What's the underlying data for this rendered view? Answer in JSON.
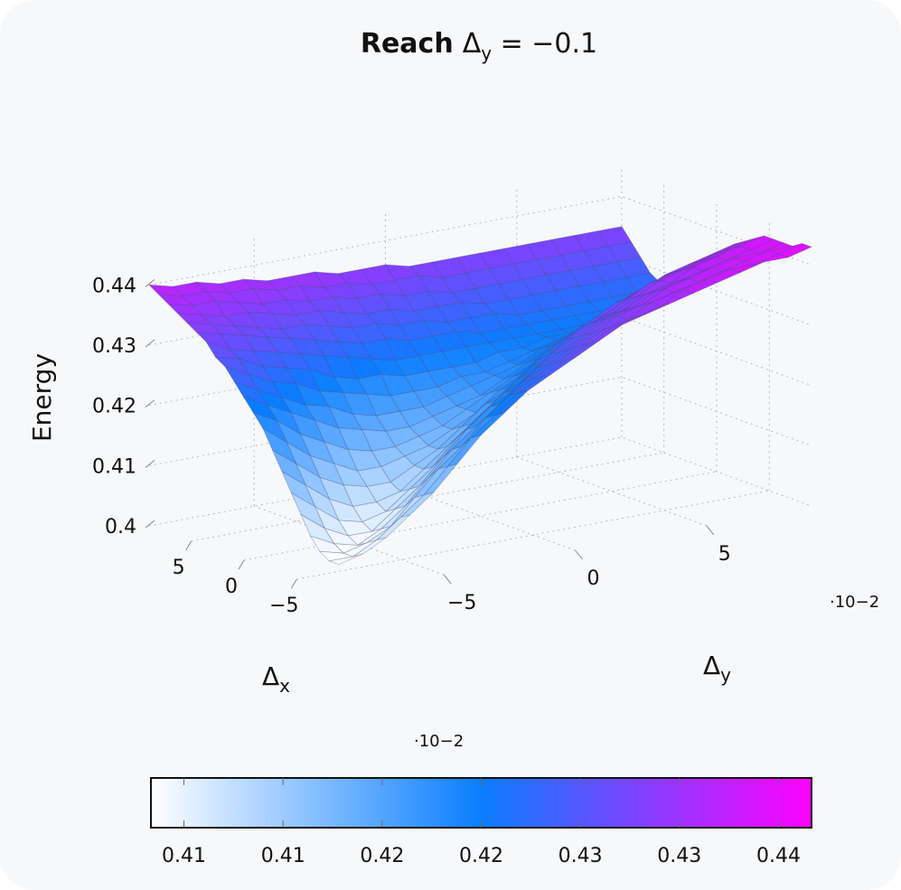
{
  "chart_data": {
    "type": "surface3d",
    "title": {
      "bold": "Reach",
      "rest": "Δy = −0.1",
      "symbol": "Δ",
      "var": "y",
      "eq": " = −0.1"
    },
    "xlabel": {
      "symbol": "Δ",
      "sub": "x"
    },
    "ylabel": {
      "symbol": "Δ",
      "sub": "y"
    },
    "zlabel": "Energy",
    "x_ticks": [
      "−5",
      "0",
      "5"
    ],
    "y_ticks": [
      "−5",
      "0",
      "5"
    ],
    "z_ticks": [
      "0.4",
      "0.41",
      "0.42",
      "0.43",
      "0.44"
    ],
    "x_tick_values": [
      -5,
      0,
      5
    ],
    "y_tick_values": [
      -5,
      0,
      5
    ],
    "z_tick_values": [
      0.4,
      0.41,
      0.42,
      0.43,
      0.44
    ],
    "x_multiplier": "·10−2",
    "y_multiplier": "·10−2",
    "xlim": [
      -9,
      9
    ],
    "ylim": [
      -9,
      9
    ],
    "zlim": [
      0.4,
      0.445
    ],
    "grid": true,
    "colormap": [
      "#ffffff",
      "#0a7dff",
      "#ff00ff"
    ],
    "colorbar": {
      "range": [
        0.405,
        0.445
      ],
      "tick_labels": [
        "0.41",
        "0.41",
        "0.42",
        "0.42",
        "0.43",
        "0.43",
        "0.44"
      ],
      "tick_values": [
        0.407,
        0.413,
        0.419,
        0.425,
        0.431,
        0.437,
        0.443
      ],
      "multiplier": "·10−2"
    },
    "grid_x": [
      -9,
      -8.1,
      -7.2,
      -6.3,
      -5.4,
      -4.5,
      -3.6,
      -2.7,
      -1.8,
      -0.9,
      0,
      0.9,
      1.8,
      2.7,
      3.6,
      4.5,
      5.4,
      6.3,
      7.2,
      8.1,
      9
    ],
    "grid_y": [
      -9,
      -8.1,
      -7.2,
      -6.3,
      -5.4,
      -4.5,
      -3.6,
      -2.7,
      -1.8,
      -0.9,
      0,
      0.9,
      1.8,
      2.7,
      3.6,
      4.5,
      5.4,
      6.3,
      7.2,
      8.1,
      9
    ],
    "z": [
      [
        0.405,
        0.406,
        0.408,
        0.411,
        0.414,
        0.418,
        0.422,
        0.425,
        0.428,
        0.43,
        0.432,
        0.434,
        0.436,
        0.437,
        0.438,
        0.439,
        0.44,
        0.441,
        0.442,
        0.442,
        0.443
      ],
      [
        0.405,
        0.405,
        0.407,
        0.41,
        0.413,
        0.417,
        0.421,
        0.424,
        0.427,
        0.429,
        0.431,
        0.433,
        0.435,
        0.436,
        0.437,
        0.439,
        0.44,
        0.441,
        0.441,
        0.442,
        0.443
      ],
      [
        0.406,
        0.405,
        0.406,
        0.408,
        0.412,
        0.416,
        0.419,
        0.423,
        0.426,
        0.428,
        0.43,
        0.432,
        0.434,
        0.435,
        0.437,
        0.438,
        0.439,
        0.44,
        0.441,
        0.442,
        0.442
      ],
      [
        0.408,
        0.406,
        0.405,
        0.407,
        0.41,
        0.414,
        0.418,
        0.421,
        0.424,
        0.427,
        0.429,
        0.431,
        0.433,
        0.435,
        0.436,
        0.438,
        0.439,
        0.44,
        0.441,
        0.441,
        0.442
      ],
      [
        0.411,
        0.408,
        0.406,
        0.406,
        0.409,
        0.412,
        0.416,
        0.42,
        0.423,
        0.425,
        0.428,
        0.43,
        0.432,
        0.434,
        0.435,
        0.437,
        0.438,
        0.439,
        0.44,
        0.441,
        0.442
      ],
      [
        0.414,
        0.411,
        0.408,
        0.407,
        0.408,
        0.411,
        0.414,
        0.418,
        0.421,
        0.424,
        0.426,
        0.429,
        0.431,
        0.433,
        0.434,
        0.436,
        0.437,
        0.439,
        0.44,
        0.441,
        0.442
      ],
      [
        0.417,
        0.414,
        0.411,
        0.409,
        0.409,
        0.41,
        0.413,
        0.416,
        0.419,
        0.422,
        0.425,
        0.427,
        0.43,
        0.432,
        0.433,
        0.435,
        0.437,
        0.438,
        0.439,
        0.44,
        0.441
      ],
      [
        0.42,
        0.417,
        0.414,
        0.412,
        0.411,
        0.411,
        0.413,
        0.415,
        0.418,
        0.421,
        0.423,
        0.426,
        0.428,
        0.43,
        0.432,
        0.434,
        0.436,
        0.437,
        0.438,
        0.439,
        0.44
      ],
      [
        0.423,
        0.42,
        0.417,
        0.415,
        0.413,
        0.413,
        0.414,
        0.415,
        0.417,
        0.419,
        0.422,
        0.424,
        0.427,
        0.429,
        0.431,
        0.433,
        0.434,
        0.436,
        0.437,
        0.438,
        0.439
      ],
      [
        0.425,
        0.423,
        0.42,
        0.418,
        0.416,
        0.415,
        0.415,
        0.416,
        0.417,
        0.419,
        0.421,
        0.423,
        0.425,
        0.427,
        0.429,
        0.431,
        0.433,
        0.434,
        0.435,
        0.436,
        0.437
      ],
      [
        0.427,
        0.425,
        0.423,
        0.421,
        0.419,
        0.418,
        0.417,
        0.417,
        0.418,
        0.419,
        0.42,
        0.422,
        0.424,
        0.426,
        0.427,
        0.429,
        0.431,
        0.432,
        0.433,
        0.434,
        0.435
      ],
      [
        0.429,
        0.427,
        0.425,
        0.423,
        0.422,
        0.42,
        0.419,
        0.419,
        0.419,
        0.42,
        0.421,
        0.422,
        0.423,
        0.425,
        0.426,
        0.427,
        0.429,
        0.43,
        0.431,
        0.432,
        0.433
      ],
      [
        0.431,
        0.429,
        0.427,
        0.426,
        0.424,
        0.423,
        0.422,
        0.421,
        0.421,
        0.421,
        0.422,
        0.422,
        0.423,
        0.424,
        0.425,
        0.426,
        0.427,
        0.428,
        0.429,
        0.43,
        0.431
      ],
      [
        0.432,
        0.431,
        0.429,
        0.428,
        0.427,
        0.425,
        0.424,
        0.424,
        0.423,
        0.423,
        0.423,
        0.423,
        0.424,
        0.424,
        0.425,
        0.425,
        0.426,
        0.427,
        0.427,
        0.428,
        0.429
      ],
      [
        0.434,
        0.432,
        0.431,
        0.43,
        0.429,
        0.428,
        0.427,
        0.426,
        0.425,
        0.425,
        0.425,
        0.425,
        0.425,
        0.425,
        0.425,
        0.425,
        0.425,
        0.426,
        0.426,
        0.427,
        0.428
      ],
      [
        0.435,
        0.434,
        0.433,
        0.432,
        0.431,
        0.43,
        0.429,
        0.428,
        0.428,
        0.427,
        0.427,
        0.427,
        0.426,
        0.426,
        0.426,
        0.426,
        0.426,
        0.426,
        0.426,
        0.427,
        0.427
      ],
      [
        0.436,
        0.435,
        0.434,
        0.433,
        0.432,
        0.432,
        0.431,
        0.43,
        0.43,
        0.429,
        0.429,
        0.428,
        0.428,
        0.428,
        0.427,
        0.427,
        0.427,
        0.427,
        0.427,
        0.427,
        0.428
      ],
      [
        0.437,
        0.436,
        0.435,
        0.435,
        0.434,
        0.433,
        0.433,
        0.432,
        0.431,
        0.431,
        0.43,
        0.43,
        0.43,
        0.429,
        0.429,
        0.429,
        0.429,
        0.429,
        0.429,
        0.429,
        0.429
      ],
      [
        0.438,
        0.437,
        0.437,
        0.436,
        0.435,
        0.435,
        0.434,
        0.434,
        0.433,
        0.433,
        0.432,
        0.432,
        0.431,
        0.431,
        0.431,
        0.431,
        0.431,
        0.431,
        0.431,
        0.431,
        0.431
      ],
      [
        0.439,
        0.438,
        0.438,
        0.437,
        0.437,
        0.436,
        0.436,
        0.435,
        0.435,
        0.434,
        0.434,
        0.434,
        0.433,
        0.433,
        0.433,
        0.433,
        0.433,
        0.433,
        0.433,
        0.433,
        0.433
      ],
      [
        0.44,
        0.439,
        0.439,
        0.438,
        0.438,
        0.437,
        0.437,
        0.437,
        0.436,
        0.436,
        0.436,
        0.435,
        0.435,
        0.435,
        0.435,
        0.435,
        0.435,
        0.435,
        0.435,
        0.435,
        0.435
      ]
    ]
  }
}
